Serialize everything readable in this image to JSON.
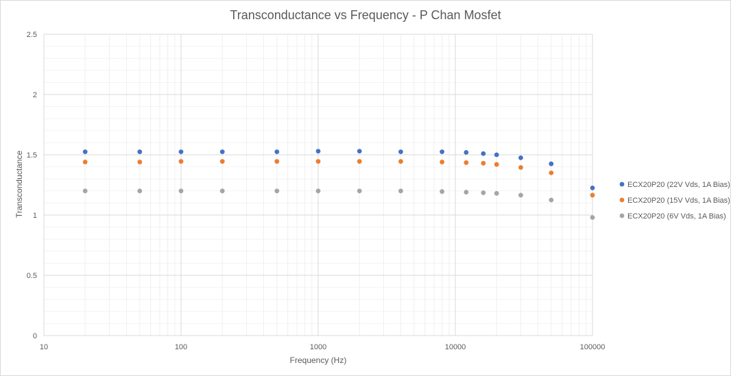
{
  "chart_data": {
    "type": "scatter",
    "title": "Transconductance vs Frequency - P Chan Mosfet",
    "xlabel": "Frequency (Hz)",
    "ylabel": "Transconductance",
    "x_scale": "log",
    "xlim": [
      10,
      100000
    ],
    "ylim": [
      0,
      2.5
    ],
    "x_ticks": [
      10,
      100,
      1000,
      10000,
      100000
    ],
    "x_tick_labels": [
      "10",
      "100",
      "1000",
      "10000",
      "100000"
    ],
    "y_ticks": [
      0,
      0.5,
      1,
      1.5,
      2,
      2.5
    ],
    "y_tick_labels": [
      "0",
      "0.5",
      "1",
      "1.5",
      "2",
      "2.5"
    ],
    "grid": true,
    "legend_position": "right",
    "x": [
      20,
      50,
      100,
      200,
      500,
      1000,
      2000,
      4000,
      8000,
      12000,
      16000,
      20000,
      30000,
      50000,
      100000
    ],
    "series": [
      {
        "name": "ECX20P20 (22V Vds, 1A Bias)",
        "color": "#4472c4",
        "values": [
          1.525,
          1.525,
          1.525,
          1.525,
          1.525,
          1.53,
          1.53,
          1.525,
          1.525,
          1.52,
          1.51,
          1.5,
          1.475,
          1.425,
          1.225
        ]
      },
      {
        "name": "ECX20P20 (15V Vds, 1A Bias)",
        "color": "#ed7d31",
        "values": [
          1.44,
          1.44,
          1.445,
          1.445,
          1.445,
          1.445,
          1.445,
          1.445,
          1.44,
          1.435,
          1.43,
          1.42,
          1.395,
          1.35,
          1.165
        ]
      },
      {
        "name": "ECX20P20 (6V Vds, 1A Bias)",
        "color": "#a5a5a5",
        "values": [
          1.2,
          1.2,
          1.2,
          1.2,
          1.2,
          1.2,
          1.2,
          1.2,
          1.195,
          1.19,
          1.185,
          1.18,
          1.165,
          1.125,
          0.98
        ]
      }
    ]
  }
}
